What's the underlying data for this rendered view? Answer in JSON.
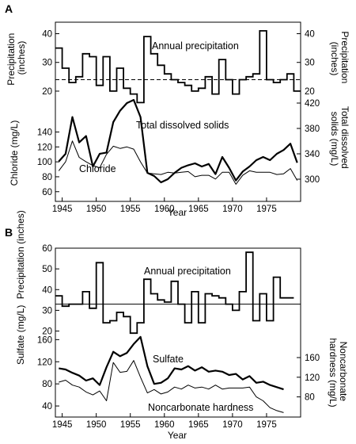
{
  "chart_data": [
    {
      "type": "line",
      "panel_label": "A",
      "xlabel": "Year",
      "xlim": [
        1944,
        1980
      ],
      "x_ticks": [
        1945,
        1950,
        1955,
        1960,
        1965,
        1970,
        1975
      ],
      "grid": false,
      "top_plot": {
        "ylabel_left": "Precipitation (inches)",
        "ylabel_right": "Precipitation (inches)",
        "ylim": [
          17.5,
          44
        ],
        "y_ticks": [
          20,
          30,
          40
        ],
        "reference_line": 24,
        "annotations": [
          "Annual precipitation"
        ],
        "series": [
          {
            "style": "step",
            "x": [
              1944,
              1945,
              1946,
              1947,
              1948,
              1949,
              1950,
              1951,
              1952,
              1953,
              1954,
              1955,
              1956,
              1957,
              1958,
              1959,
              1960,
              1961,
              1962,
              1963,
              1964,
              1965,
              1966,
              1967,
              1968,
              1969,
              1970,
              1971,
              1972,
              1973,
              1974,
              1975,
              1976,
              1977,
              1978,
              1979
            ],
            "values": [
              35,
              28,
              23,
              25,
              33,
              32,
              22,
              32,
              20,
              28,
              21,
              19,
              16,
              39,
              33,
              29,
              26,
              24,
              23,
              22,
              20,
              21,
              25,
              19,
              31,
              24,
              19,
              24,
              25,
              26,
              41,
              24,
              23,
              24,
              26,
              20
            ]
          }
        ]
      },
      "bottom_plot": {
        "ylabel_left": "Chloride (mg/L)",
        "ylabel_right": "Total dissolved solids (mg/L)",
        "ylim_left": [
          47,
          200
        ],
        "y_ticks_left": [
          60,
          80,
          100,
          120,
          140
        ],
        "ylim_right": [
          265,
          445
        ],
        "y_ticks_right": [
          300,
          340,
          380,
          420
        ],
        "annotations": [
          "Total dissolved solids",
          "Chloride"
        ],
        "series": [
          {
            "name": "Total dissolved solids",
            "axis": "right",
            "x": [
              1944,
              1945,
              1946,
              1947,
              1948,
              1949,
              1950,
              1951,
              1952,
              1953,
              1954,
              1955,
              1956,
              1957,
              1958,
              1959,
              1960,
              1961,
              1962,
              1963,
              1964,
              1965,
              1966,
              1967,
              1968,
              1969,
              1970,
              1971,
              1972,
              1973,
              1974,
              1975,
              1976,
              1977,
              1978,
              1979
            ],
            "values": [
              328,
              340,
              398,
              358,
              368,
              320,
              340,
              342,
              390,
              408,
              420,
              425,
              398,
              310,
              305,
              295,
              300,
              310,
              318,
              322,
              325,
              320,
              324,
              308,
              335,
              318,
              298,
              312,
              320,
              330,
              335,
              330,
              340,
              346,
              356,
              326
            ]
          },
          {
            "name": "Chloride",
            "axis": "left",
            "x": [
              1944,
              1945,
              1946,
              1947,
              1948,
              1949,
              1950,
              1951,
              1952,
              1953,
              1954,
              1955,
              1956,
              1957,
              1958,
              1959,
              1960,
              1961,
              1962,
              1963,
              1964,
              1965,
              1966,
              1967,
              1968,
              1969,
              1970,
              1971,
              1972,
              1973,
              1974,
              1975,
              1976,
              1977,
              1978,
              1979
            ],
            "values": [
              88,
              100,
              128,
              106,
              100,
              95,
              92,
              110,
              121,
              118,
              120,
              117,
              100,
              85,
              84,
              83,
              86,
              85,
              86,
              87,
              80,
              82,
              82,
              77,
              86,
              86,
              70,
              82,
              88,
              86,
              86,
              86,
              83,
              84,
              91,
              75
            ]
          }
        ]
      }
    },
    {
      "type": "line",
      "panel_label": "B",
      "xlabel": "Year",
      "xlim": [
        1944,
        1980
      ],
      "x_ticks": [
        1945,
        1950,
        1955,
        1960,
        1965,
        1970,
        1975
      ],
      "grid": false,
      "top_plot": {
        "ylabel_left": "Precipitation (inches)",
        "ylim": [
          16,
          60
        ],
        "y_ticks": [
          20,
          30,
          40,
          50,
          60
        ],
        "reference_line": 33,
        "annotations": [
          "Annual precipitation"
        ],
        "series": [
          {
            "style": "step",
            "x": [
              1944,
              1945,
              1946,
              1947,
              1948,
              1949,
              1950,
              1951,
              1952,
              1953,
              1954,
              1955,
              1956,
              1957,
              1958,
              1959,
              1960,
              1961,
              1962,
              1963,
              1964,
              1965,
              1966,
              1967,
              1968,
              1969,
              1970,
              1971,
              1972,
              1973,
              1974,
              1975,
              1976,
              1977,
              1978
            ],
            "values": [
              37,
              32,
              33,
              33,
              39,
              31,
              53,
              24,
              25,
              29,
              27,
              19,
              24,
              45,
              38,
              35,
              34,
              44,
              33,
              24,
              39,
              24,
              38,
              37,
              36,
              33,
              30,
              39,
              58,
              25,
              38,
              25,
              46,
              36,
              36
            ]
          }
        ]
      },
      "bottom_plot": {
        "ylabel_left": "Sulfate (mg/L)",
        "ylabel_right": "Noncarbonate hardness (mg/L)",
        "ylim_left": [
          20,
          172
        ],
        "y_ticks_left": [
          40,
          80,
          120,
          160
        ],
        "ylim_right": [
          39,
          210
        ],
        "y_ticks_right": [
          80,
          120,
          160
        ],
        "annotations": [
          "Sulfate",
          "Noncarbonate hardness"
        ],
        "series": [
          {
            "name": "Sulfate",
            "axis": "left",
            "x": [
              1944,
              1945,
              1946,
              1947,
              1948,
              1949,
              1950,
              1951,
              1952,
              1953,
              1954,
              1955,
              1956,
              1957,
              1958,
              1959,
              1960,
              1961,
              1962,
              1963,
              1964,
              1965,
              1966,
              1967,
              1968,
              1969,
              1970,
              1971,
              1972,
              1973,
              1974,
              1975,
              1976,
              1977
            ],
            "values": [
              108,
              106,
              100,
              95,
              86,
              90,
              78,
              110,
              138,
              130,
              136,
              152,
              165,
              112,
              80,
              82,
              90,
              108,
              106,
              112,
              104,
              110,
              102,
              104,
              102,
              96,
              98,
              88,
              94,
              82,
              84,
              78,
              74,
              70
            ]
          },
          {
            "name": "Noncarbonate hardness",
            "axis": "right",
            "x": [
              1944,
              1945,
              1946,
              1947,
              1948,
              1949,
              1950,
              1951,
              1952,
              1953,
              1954,
              1955,
              1956,
              1957,
              1958,
              1959,
              1960,
              1961,
              1962,
              1963,
              1964,
              1965,
              1966,
              1967,
              1968,
              1969,
              1970,
              1971,
              1972,
              1973,
              1974,
              1975,
              1976,
              1977
            ],
            "values": [
              110,
              114,
              104,
              100,
              90,
              84,
              92,
              72,
              150,
              130,
              132,
              154,
              120,
              88,
              95,
              86,
              90,
              100,
              96,
              104,
              98,
              100,
              96,
              104,
              96,
              98,
              98,
              98,
              100,
              80,
              72,
              58,
              52,
              48
            ]
          }
        ]
      }
    }
  ]
}
